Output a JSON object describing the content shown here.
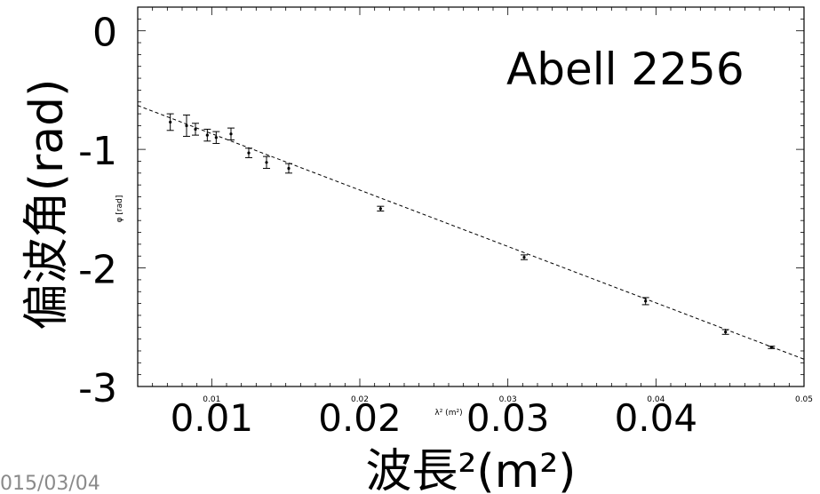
{
  "footer_date": "015/03/04",
  "chart_data": {
    "type": "scatter",
    "title": "Abell 2256",
    "ylabel": "偏波角(rad)",
    "xlabel": "波長²(m²)",
    "small_ylabel": "φ [rad]",
    "small_xlabel": "λ² (m²)",
    "xlim": [
      0.005,
      0.05
    ],
    "ylim": [
      -3,
      0.2
    ],
    "yticks": [
      0,
      -1,
      -2,
      -3
    ],
    "ytick_labels": [
      "0",
      "-1",
      "-2",
      "-3"
    ],
    "xticks_big": [
      0.01,
      0.02,
      0.03,
      0.04
    ],
    "xtick_labels_big": [
      "0.01",
      "0.02",
      "0.03",
      "0.04"
    ],
    "xticks_small": [
      0.01,
      0.02,
      0.03,
      0.04,
      0.05
    ],
    "xtick_labels_small": [
      "0.01",
      "0.02",
      "0.03",
      "0.04",
      "0.05"
    ],
    "series": [
      {
        "x": [
          0.0072,
          0.0083,
          0.0089,
          0.0097,
          0.0103,
          0.0113,
          0.0125,
          0.0137,
          0.0152,
          0.0214,
          0.0311,
          0.0393,
          0.0447,
          0.0478
        ],
        "y": [
          -0.77,
          -0.8,
          -0.83,
          -0.88,
          -0.9,
          -0.87,
          -1.03,
          -1.11,
          -1.16,
          -1.5,
          -1.91,
          -2.28,
          -2.54,
          -2.67
        ],
        "yerr": [
          0.07,
          0.09,
          0.05,
          0.05,
          0.05,
          0.05,
          0.04,
          0.05,
          0.04,
          0.02,
          0.02,
          0.03,
          0.02,
          0.01
        ]
      }
    ],
    "fit_line": {
      "x": [
        0.005,
        0.05
      ],
      "y": [
        -0.63,
        -2.77
      ]
    },
    "grid": false
  }
}
